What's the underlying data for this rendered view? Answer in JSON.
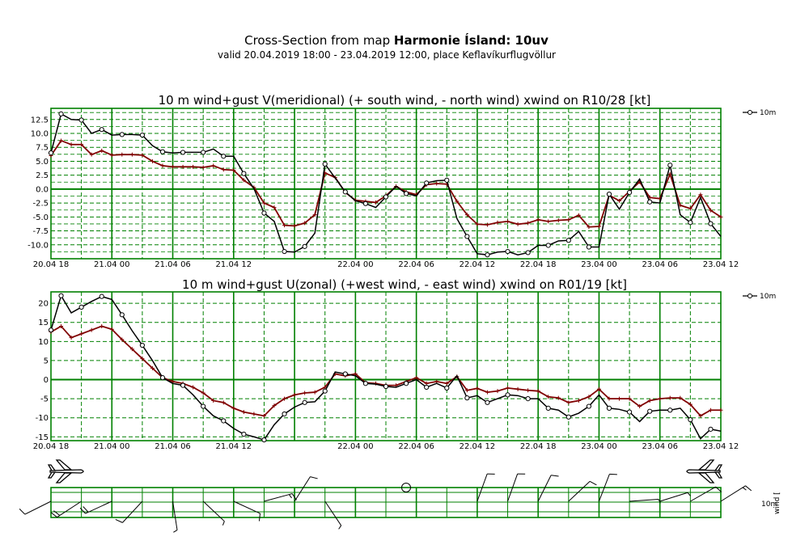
{
  "header": {
    "title_prefix": "Cross-Section from map ",
    "title_bold": "Harmonie Ísland: 10uv",
    "subtitle": "valid 20.04.2019 18:00 - 23.04.2019 12:00, place Keflavíkurflugvöllur"
  },
  "colors": {
    "grid": "#008000",
    "wind": "#000000",
    "gust": "#800000"
  },
  "chart_data": [
    {
      "type": "line",
      "title": "10 m wind+gust V(meridional) (+ south wind, - north wind) xwind on R10/28 [kt]",
      "x_tick_labels": [
        "20.04 18",
        "21.04 00",
        "21.04 06",
        "21.04 12",
        "22.04 00",
        "22.04 06",
        "22.04 12",
        "22.04 18",
        "23.04 00",
        "23.04 06",
        "23.04 12"
      ],
      "x_tick_hours": [
        0,
        6,
        12,
        18,
        30,
        36,
        42,
        48,
        54,
        60,
        66
      ],
      "x_range_hours": [
        0,
        66
      ],
      "ylim": [
        -12.5,
        14.5
      ],
      "y_ticks": [
        -10.0,
        -7.5,
        -5.0,
        -2.5,
        0.0,
        2.5,
        5.0,
        7.5,
        10.0,
        12.5
      ],
      "y_tick_labels": [
        "-10.0",
        "-7.5",
        "-5.0",
        "-2.5",
        "0.0",
        "2.5",
        "5.0",
        "7.5",
        "10.0",
        "12.5"
      ],
      "legend": [
        "10m"
      ],
      "series": [
        {
          "name": "10m",
          "marker": "circle",
          "values": [
            6.5,
            13.5,
            12.5,
            12.4,
            10.0,
            10.7,
            9.7,
            9.8,
            9.8,
            9.7,
            7.8,
            6.7,
            6.5,
            6.6,
            6.6,
            6.6,
            7.2,
            5.9,
            5.9,
            2.8,
            0.1,
            -4.3,
            -5.8,
            -11.2,
            -11.3,
            -10.3,
            -7.9,
            4.5,
            2.0,
            -0.5,
            -2.1,
            -2.6,
            -3.3,
            -1.4,
            0.5,
            -0.8,
            -1.2,
            1.1,
            1.5,
            1.6,
            -5.3,
            -8.5,
            -11.6,
            -11.8,
            -11.3,
            -11.2,
            -11.8,
            -11.4,
            -10.1,
            -10.1,
            -9.3,
            -9.2,
            -7.6,
            -10.4,
            -10.4,
            -0.9,
            -3.6,
            -0.6,
            1.8,
            -2.3,
            -2.5,
            4.3,
            -4.6,
            -6.0,
            -1.5,
            -6.2,
            -8.5
          ]
        },
        {
          "name": "gust",
          "marker": "plus",
          "values": [
            6.0,
            8.7,
            8.0,
            8.0,
            6.2,
            6.9,
            6.1,
            6.2,
            6.2,
            6.1,
            5.0,
            4.2,
            4.0,
            4.0,
            4.0,
            3.9,
            4.2,
            3.5,
            3.4,
            1.6,
            0.3,
            -2.5,
            -3.3,
            -6.5,
            -6.6,
            -6.1,
            -4.6,
            2.9,
            2.1,
            -0.6,
            -2.0,
            -2.2,
            -2.4,
            -1.2,
            0.5,
            -0.5,
            -1.0,
            0.8,
            1.0,
            0.9,
            -2.2,
            -4.6,
            -6.3,
            -6.4,
            -6.0,
            -5.8,
            -6.3,
            -6.1,
            -5.5,
            -5.8,
            -5.6,
            -5.5,
            -4.7,
            -6.8,
            -6.7,
            -1.1,
            -2.1,
            -0.4,
            1.3,
            -1.5,
            -1.7,
            2.7,
            -2.9,
            -3.5,
            -1.0,
            -3.8,
            -5.0
          ]
        }
      ]
    },
    {
      "type": "line",
      "title": "10 m wind+gust U(zonal) (+west wind, - east wind) xwind on R01/19 [kt]",
      "x_tick_labels": [
        "20.04 18",
        "21.04 00",
        "21.04 06",
        "21.04 12",
        "22.04 00",
        "22.04 06",
        "22.04 12",
        "22.04 18",
        "23.04 00",
        "23.04 06",
        "23.04 12"
      ],
      "x_tick_hours": [
        0,
        6,
        12,
        18,
        30,
        36,
        42,
        48,
        54,
        60,
        66
      ],
      "x_range_hours": [
        0,
        66
      ],
      "ylim": [
        -16,
        23
      ],
      "y_ticks": [
        -15,
        -10,
        -5,
        0,
        5,
        10,
        15,
        20
      ],
      "y_tick_labels": [
        "-15",
        "-10",
        "-5",
        "0",
        "5",
        "10",
        "15",
        "20"
      ],
      "legend": [
        "10m"
      ],
      "series": [
        {
          "name": "10m",
          "marker": "circle",
          "values": [
            13.0,
            22.0,
            17.5,
            19.0,
            20.5,
            21.8,
            21.0,
            17.0,
            12.8,
            9.0,
            5.0,
            0.5,
            -1.0,
            -1.5,
            -4.0,
            -7.0,
            -9.5,
            -10.8,
            -12.8,
            -14.3,
            -15.0,
            -15.8,
            -11.8,
            -9.0,
            -7.2,
            -6.0,
            -5.8,
            -3.0,
            2.0,
            1.5,
            1.0,
            -1.0,
            -1.2,
            -1.8,
            -2.0,
            -1.0,
            0.0,
            -2.0,
            -1.0,
            -2.2,
            1.0,
            -4.8,
            -4.2,
            -6.0,
            -5.0,
            -4.0,
            -4.2,
            -5.0,
            -5.0,
            -7.5,
            -8.0,
            -9.8,
            -8.8,
            -7.0,
            -4.0,
            -7.5,
            -7.8,
            -8.5,
            -11.0,
            -8.3,
            -8.0,
            -8.0,
            -7.5,
            -10.5,
            -15.5,
            -13.0,
            -13.5
          ]
        },
        {
          "name": "gust",
          "marker": "plus",
          "values": [
            12.5,
            14.0,
            11.0,
            12.0,
            13.0,
            14.0,
            13.2,
            10.5,
            8.0,
            5.5,
            3.0,
            0.5,
            -0.5,
            -1.0,
            -2.0,
            -3.5,
            -5.5,
            -6.0,
            -7.5,
            -8.5,
            -9.0,
            -9.5,
            -6.8,
            -5.0,
            -4.0,
            -3.5,
            -3.3,
            -2.0,
            1.5,
            1.0,
            1.5,
            -0.8,
            -1.0,
            -1.5,
            -1.5,
            -0.5,
            0.5,
            -1.0,
            -0.5,
            -1.0,
            0.8,
            -2.8,
            -2.3,
            -3.3,
            -3.0,
            -2.2,
            -2.5,
            -2.8,
            -3.0,
            -4.5,
            -4.8,
            -6.0,
            -5.5,
            -4.5,
            -2.5,
            -5.0,
            -5.0,
            -5.0,
            -7.0,
            -5.5,
            -5.0,
            -4.8,
            -4.8,
            -6.5,
            -9.5,
            -8.0,
            -8.0
          ]
        }
      ]
    }
  ],
  "wind_strip": {
    "label_10m": "10m",
    "label_wind": "wind [",
    "plane_icons": [
      "airplane-icon-left",
      "airplane-icon-right"
    ]
  }
}
